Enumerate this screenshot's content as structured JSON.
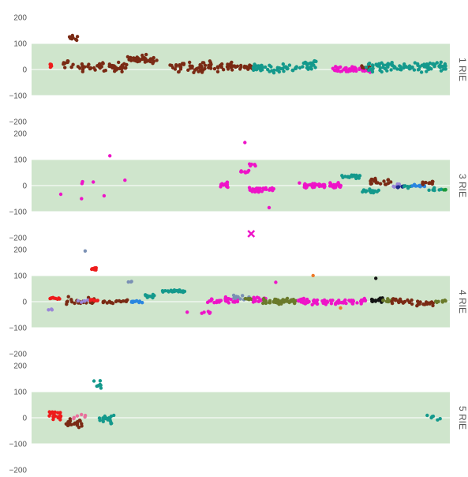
{
  "chart_data": {
    "type": "scatter",
    "facet_direction": "vertical",
    "y_ticks": [
      200,
      100,
      0,
      -100,
      -200
    ],
    "ylim": [
      -200,
      200
    ],
    "band": {
      "range": [
        -100,
        100
      ],
      "color": "#cfe5cc"
    },
    "grid": true,
    "colors": {
      "red": "#ee1c1c",
      "brown": "#7a2a14",
      "teal": "#14998c",
      "magenta": "#ee14c8",
      "pink_light": "#e8709c",
      "gray_blue": "#7a90b4",
      "lavender": "#9a86d8",
      "blue": "#2a86e0",
      "olive": "#6a7a2a",
      "navy": "#1c2a8a",
      "green": "#1c9a3a",
      "orange": "#ee7a2a",
      "black": "#141414"
    },
    "panels": [
      {
        "label": "1 RIE",
        "clusters": [
          {
            "color": "red",
            "xs": [
              0.04,
              0.05
            ],
            "y": 20,
            "spread": 20,
            "n": 6
          },
          {
            "color": "brown",
            "xs": [
              0.07,
              0.1
            ],
            "y": 20,
            "spread": 25,
            "n": 10
          },
          {
            "color": "brown",
            "xs": [
              0.09,
              0.11
            ],
            "y": 120,
            "spread": 15,
            "n": 10
          },
          {
            "color": "brown",
            "xs": [
              0.11,
              0.23
            ],
            "y": 10,
            "spread": 25,
            "n": 60
          },
          {
            "color": "brown",
            "xs": [
              0.23,
              0.3
            ],
            "y": 40,
            "spread": 22,
            "n": 40
          },
          {
            "color": "brown",
            "xs": [
              0.33,
              0.48
            ],
            "y": 10,
            "spread": 30,
            "n": 70
          },
          {
            "color": "brown",
            "xs": [
              0.48,
              0.53
            ],
            "y": 10,
            "spread": 15,
            "n": 20
          },
          {
            "color": "teal",
            "xs": [
              0.53,
              0.68
            ],
            "y": 5,
            "spread": 25,
            "n": 60
          },
          {
            "color": "teal",
            "xs": [
              0.64,
              0.68
            ],
            "y": 25,
            "spread": 10,
            "n": 15
          },
          {
            "color": "magenta",
            "xs": [
              0.72,
              0.81
            ],
            "y": 0,
            "spread": 20,
            "n": 50
          },
          {
            "color": "brown",
            "xs": [
              0.78,
              0.81
            ],
            "y": 10,
            "spread": 10,
            "n": 8
          },
          {
            "color": "teal",
            "xs": [
              0.8,
              0.99
            ],
            "y": 10,
            "spread": 25,
            "n": 90
          }
        ]
      },
      {
        "label": "3 RIE",
        "clusters": [
          {
            "color": "magenta",
            "xs": [
              0.06,
              0.07
            ],
            "y": -30,
            "spread": 5,
            "n": 1
          },
          {
            "color": "magenta",
            "xs": [
              0.11,
              0.12
            ],
            "y": -50,
            "spread": 5,
            "n": 1
          },
          {
            "color": "magenta",
            "xs": [
              0.12,
              0.15
            ],
            "y": 10,
            "spread": 10,
            "n": 3
          },
          {
            "color": "magenta",
            "xs": [
              0.17,
              0.18
            ],
            "y": -40,
            "spread": 5,
            "n": 1
          },
          {
            "color": "magenta",
            "xs": [
              0.18,
              0.19
            ],
            "y": 115,
            "spread": 5,
            "n": 1
          },
          {
            "color": "magenta",
            "xs": [
              0.21,
              0.23
            ],
            "y": 20,
            "spread": 5,
            "n": 1
          },
          {
            "color": "magenta",
            "xs": [
              0.45,
              0.47
            ],
            "y": 5,
            "spread": 15,
            "n": 15
          },
          {
            "color": "magenta",
            "xs": [
              0.5,
              0.52
            ],
            "y": 55,
            "spread": 8,
            "n": 8
          },
          {
            "color": "magenta",
            "xs": [
              0.52,
              0.54
            ],
            "y": 80,
            "spread": 10,
            "n": 5
          },
          {
            "color": "magenta",
            "xs": [
              0.51,
              0.52
            ],
            "y": 165,
            "spread": 3,
            "n": 1
          },
          {
            "color": "magenta",
            "xs": [
              0.52,
              0.58
            ],
            "y": -15,
            "spread": 15,
            "n": 30
          },
          {
            "color": "magenta",
            "xs": [
              0.56,
              0.57
            ],
            "y": -85,
            "spread": 3,
            "n": 1
          },
          {
            "color": "magenta",
            "xs": [
              0.64,
              0.75
            ],
            "y": 0,
            "spread": 15,
            "n": 55
          },
          {
            "color": "teal",
            "xs": [
              0.73,
              0.79
            ],
            "y": 35,
            "spread": 12,
            "n": 20
          },
          {
            "color": "teal",
            "xs": [
              0.79,
              0.83
            ],
            "y": -20,
            "spread": 12,
            "n": 20
          },
          {
            "color": "brown",
            "xs": [
              0.81,
              0.86
            ],
            "y": 15,
            "spread": 20,
            "n": 22
          },
          {
            "color": "lavender",
            "xs": [
              0.86,
              0.88
            ],
            "y": 0,
            "spread": 8,
            "n": 8
          },
          {
            "color": "navy",
            "xs": [
              0.87,
              0.89
            ],
            "y": -5,
            "spread": 6,
            "n": 6
          },
          {
            "color": "teal",
            "xs": [
              0.89,
              0.91
            ],
            "y": -5,
            "spread": 8,
            "n": 6
          },
          {
            "color": "blue",
            "xs": [
              0.91,
              0.94
            ],
            "y": 0,
            "spread": 10,
            "n": 12
          },
          {
            "color": "brown",
            "xs": [
              0.93,
              0.96
            ],
            "y": 10,
            "spread": 10,
            "n": 10
          },
          {
            "color": "teal",
            "xs": [
              0.95,
              0.98
            ],
            "y": -15,
            "spread": 8,
            "n": 8
          },
          {
            "color": "green",
            "xs": [
              0.98,
              0.99
            ],
            "y": -15,
            "spread": 5,
            "n": 4
          }
        ],
        "crosses": [
          {
            "color": "magenta",
            "x": 0.525,
            "y": -185
          }
        ]
      },
      {
        "label": "4 RIE",
        "clusters": [
          {
            "color": "red",
            "xs": [
              0.04,
              0.07
            ],
            "y": 12,
            "spread": 6,
            "n": 10
          },
          {
            "color": "lavender",
            "xs": [
              0.04,
              0.05
            ],
            "y": -30,
            "spread": 10,
            "n": 3
          },
          {
            "color": "gray_blue",
            "xs": [
              0.12,
              0.13
            ],
            "y": 195,
            "spread": 2,
            "n": 1
          },
          {
            "color": "red",
            "xs": [
              0.14,
              0.16
            ],
            "y": 125,
            "spread": 8,
            "n": 8
          },
          {
            "color": "brown",
            "xs": [
              0.08,
              0.15
            ],
            "y": 0,
            "spread": 20,
            "n": 25
          },
          {
            "color": "lavender",
            "xs": [
              0.11,
              0.14
            ],
            "y": 0,
            "spread": 10,
            "n": 6
          },
          {
            "color": "red",
            "xs": [
              0.14,
              0.16
            ],
            "y": 5,
            "spread": 5,
            "n": 8
          },
          {
            "color": "brown",
            "xs": [
              0.17,
              0.23
            ],
            "y": 0,
            "spread": 10,
            "n": 18
          },
          {
            "color": "gray_blue",
            "xs": [
              0.23,
              0.24
            ],
            "y": 75,
            "spread": 10,
            "n": 3
          },
          {
            "color": "blue",
            "xs": [
              0.23,
              0.27
            ],
            "y": 0,
            "spread": 6,
            "n": 10
          },
          {
            "color": "teal",
            "xs": [
              0.27,
              0.3
            ],
            "y": 20,
            "spread": 10,
            "n": 10
          },
          {
            "color": "teal",
            "xs": [
              0.31,
              0.37
            ],
            "y": 40,
            "spread": 8,
            "n": 25
          },
          {
            "color": "magenta",
            "xs": [
              0.37,
              0.43
            ],
            "y": -45,
            "spread": 15,
            "n": 6
          },
          {
            "color": "magenta",
            "xs": [
              0.42,
              0.5
            ],
            "y": 5,
            "spread": 15,
            "n": 30
          },
          {
            "color": "gray_blue",
            "xs": [
              0.48,
              0.52
            ],
            "y": 15,
            "spread": 20,
            "n": 12
          },
          {
            "color": "olive",
            "xs": [
              0.5,
              0.53
            ],
            "y": 10,
            "spread": 8,
            "n": 6
          },
          {
            "color": "magenta",
            "xs": [
              0.53,
              0.56
            ],
            "y": 10,
            "spread": 15,
            "n": 15
          },
          {
            "color": "magenta",
            "xs": [
              0.58,
              0.59
            ],
            "y": 75,
            "spread": 3,
            "n": 1
          },
          {
            "color": "olive",
            "xs": [
              0.55,
              0.64
            ],
            "y": 0,
            "spread": 15,
            "n": 55
          },
          {
            "color": "magenta",
            "xs": [
              0.63,
              0.8
            ],
            "y": 0,
            "spread": 15,
            "n": 70
          },
          {
            "color": "orange",
            "xs": [
              0.67,
              0.68
            ],
            "y": 100,
            "spread": 2,
            "n": 1
          },
          {
            "color": "orange",
            "xs": [
              0.73,
              0.75
            ],
            "y": -25,
            "spread": 3,
            "n": 1
          },
          {
            "color": "black",
            "xs": [
              0.81,
              0.84
            ],
            "y": 5,
            "spread": 15,
            "n": 15
          },
          {
            "color": "black",
            "xs": [
              0.82,
              0.83
            ],
            "y": 90,
            "spread": 5,
            "n": 1
          },
          {
            "color": "olive",
            "xs": [
              0.84,
              0.87
            ],
            "y": 5,
            "spread": 10,
            "n": 15
          },
          {
            "color": "brown",
            "xs": [
              0.86,
              0.91
            ],
            "y": 0,
            "spread": 20,
            "n": 18
          },
          {
            "color": "brown",
            "xs": [
              0.92,
              0.96
            ],
            "y": -10,
            "spread": 20,
            "n": 16
          },
          {
            "color": "olive",
            "xs": [
              0.96,
              0.99
            ],
            "y": 0,
            "spread": 10,
            "n": 8
          }
        ]
      },
      {
        "label": "5 RIE",
        "clusters": [
          {
            "color": "red",
            "xs": [
              0.04,
              0.07
            ],
            "y": 10,
            "spread": 25,
            "n": 22
          },
          {
            "color": "brown",
            "xs": [
              0.08,
              0.12
            ],
            "y": -20,
            "spread": 25,
            "n": 25
          },
          {
            "color": "pink_light",
            "xs": [
              0.1,
              0.13
            ],
            "y": 0,
            "spread": 30,
            "n": 6
          },
          {
            "color": "teal",
            "xs": [
              0.14,
              0.17
            ],
            "y": 130,
            "spread": 25,
            "n": 8
          },
          {
            "color": "teal",
            "xs": [
              0.16,
              0.2
            ],
            "y": -10,
            "spread": 30,
            "n": 20
          },
          {
            "color": "teal",
            "xs": [
              0.94,
              0.98
            ],
            "y": 0,
            "spread": 15,
            "n": 6
          }
        ]
      }
    ]
  }
}
